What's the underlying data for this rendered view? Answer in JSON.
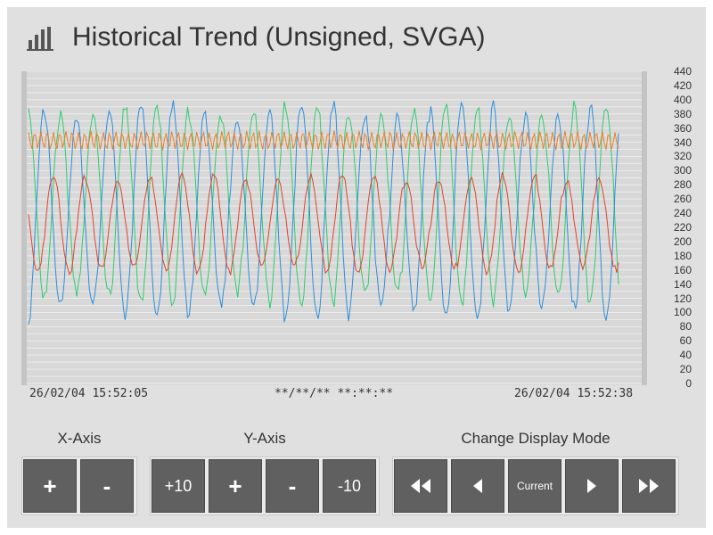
{
  "title": "Historical Trend (Unsigned, SVGA)",
  "time_labels": {
    "start": "26/02/04 15:52:05",
    "cursor": "**/**/** **:**:**",
    "end": "26/02/04 15:52:38"
  },
  "controls": {
    "x_axis": {
      "label": "X-Axis",
      "plus": "+",
      "minus": "-"
    },
    "y_axis": {
      "label": "Y-Axis",
      "plus10": "+10",
      "plus": "+",
      "minus": "-",
      "minus10": "-10"
    },
    "display_mode": {
      "label": "Change Display Mode",
      "current": "Current"
    }
  },
  "icons": {
    "title": "bar-chart-icon",
    "fast_back": "double-triangle-left-icon",
    "back": "triangle-left-icon",
    "forward": "triangle-right-icon",
    "fast_forward": "double-triangle-right-icon"
  },
  "colors": {
    "plot_bg": "#d8d8d8",
    "grid": "#ffffff",
    "series_green": "#2ecc71",
    "series_blue": "#2b8fd9",
    "series_red": "#e0442a",
    "series_orange": "#e8812a",
    "button": "#606060"
  },
  "chart_data": {
    "type": "line",
    "ylim": [
      0,
      440
    ],
    "y_ticks": [
      "440",
      "420",
      "400",
      "380",
      "360",
      "340",
      "320",
      "300",
      "280",
      "260",
      "240",
      "220",
      "200",
      "180",
      "160",
      "140",
      "120",
      "100",
      "80",
      "60",
      "40",
      "20",
      "0"
    ],
    "grid": true,
    "series": [
      {
        "color": "#2ecc71",
        "description_free": true,
        "period": 36,
        "phase": 0,
        "min": 120,
        "max": 385
      },
      {
        "color": "#2b8fd9",
        "period": 36,
        "phase": 9,
        "min": 100,
        "max": 385
      },
      {
        "color": "#e0442a",
        "period": 36,
        "phase": 4,
        "min": 160,
        "max": 290
      },
      {
        "color": "#e8812a",
        "period": 7,
        "phase": 0,
        "min": 330,
        "max": 355
      }
    ]
  }
}
